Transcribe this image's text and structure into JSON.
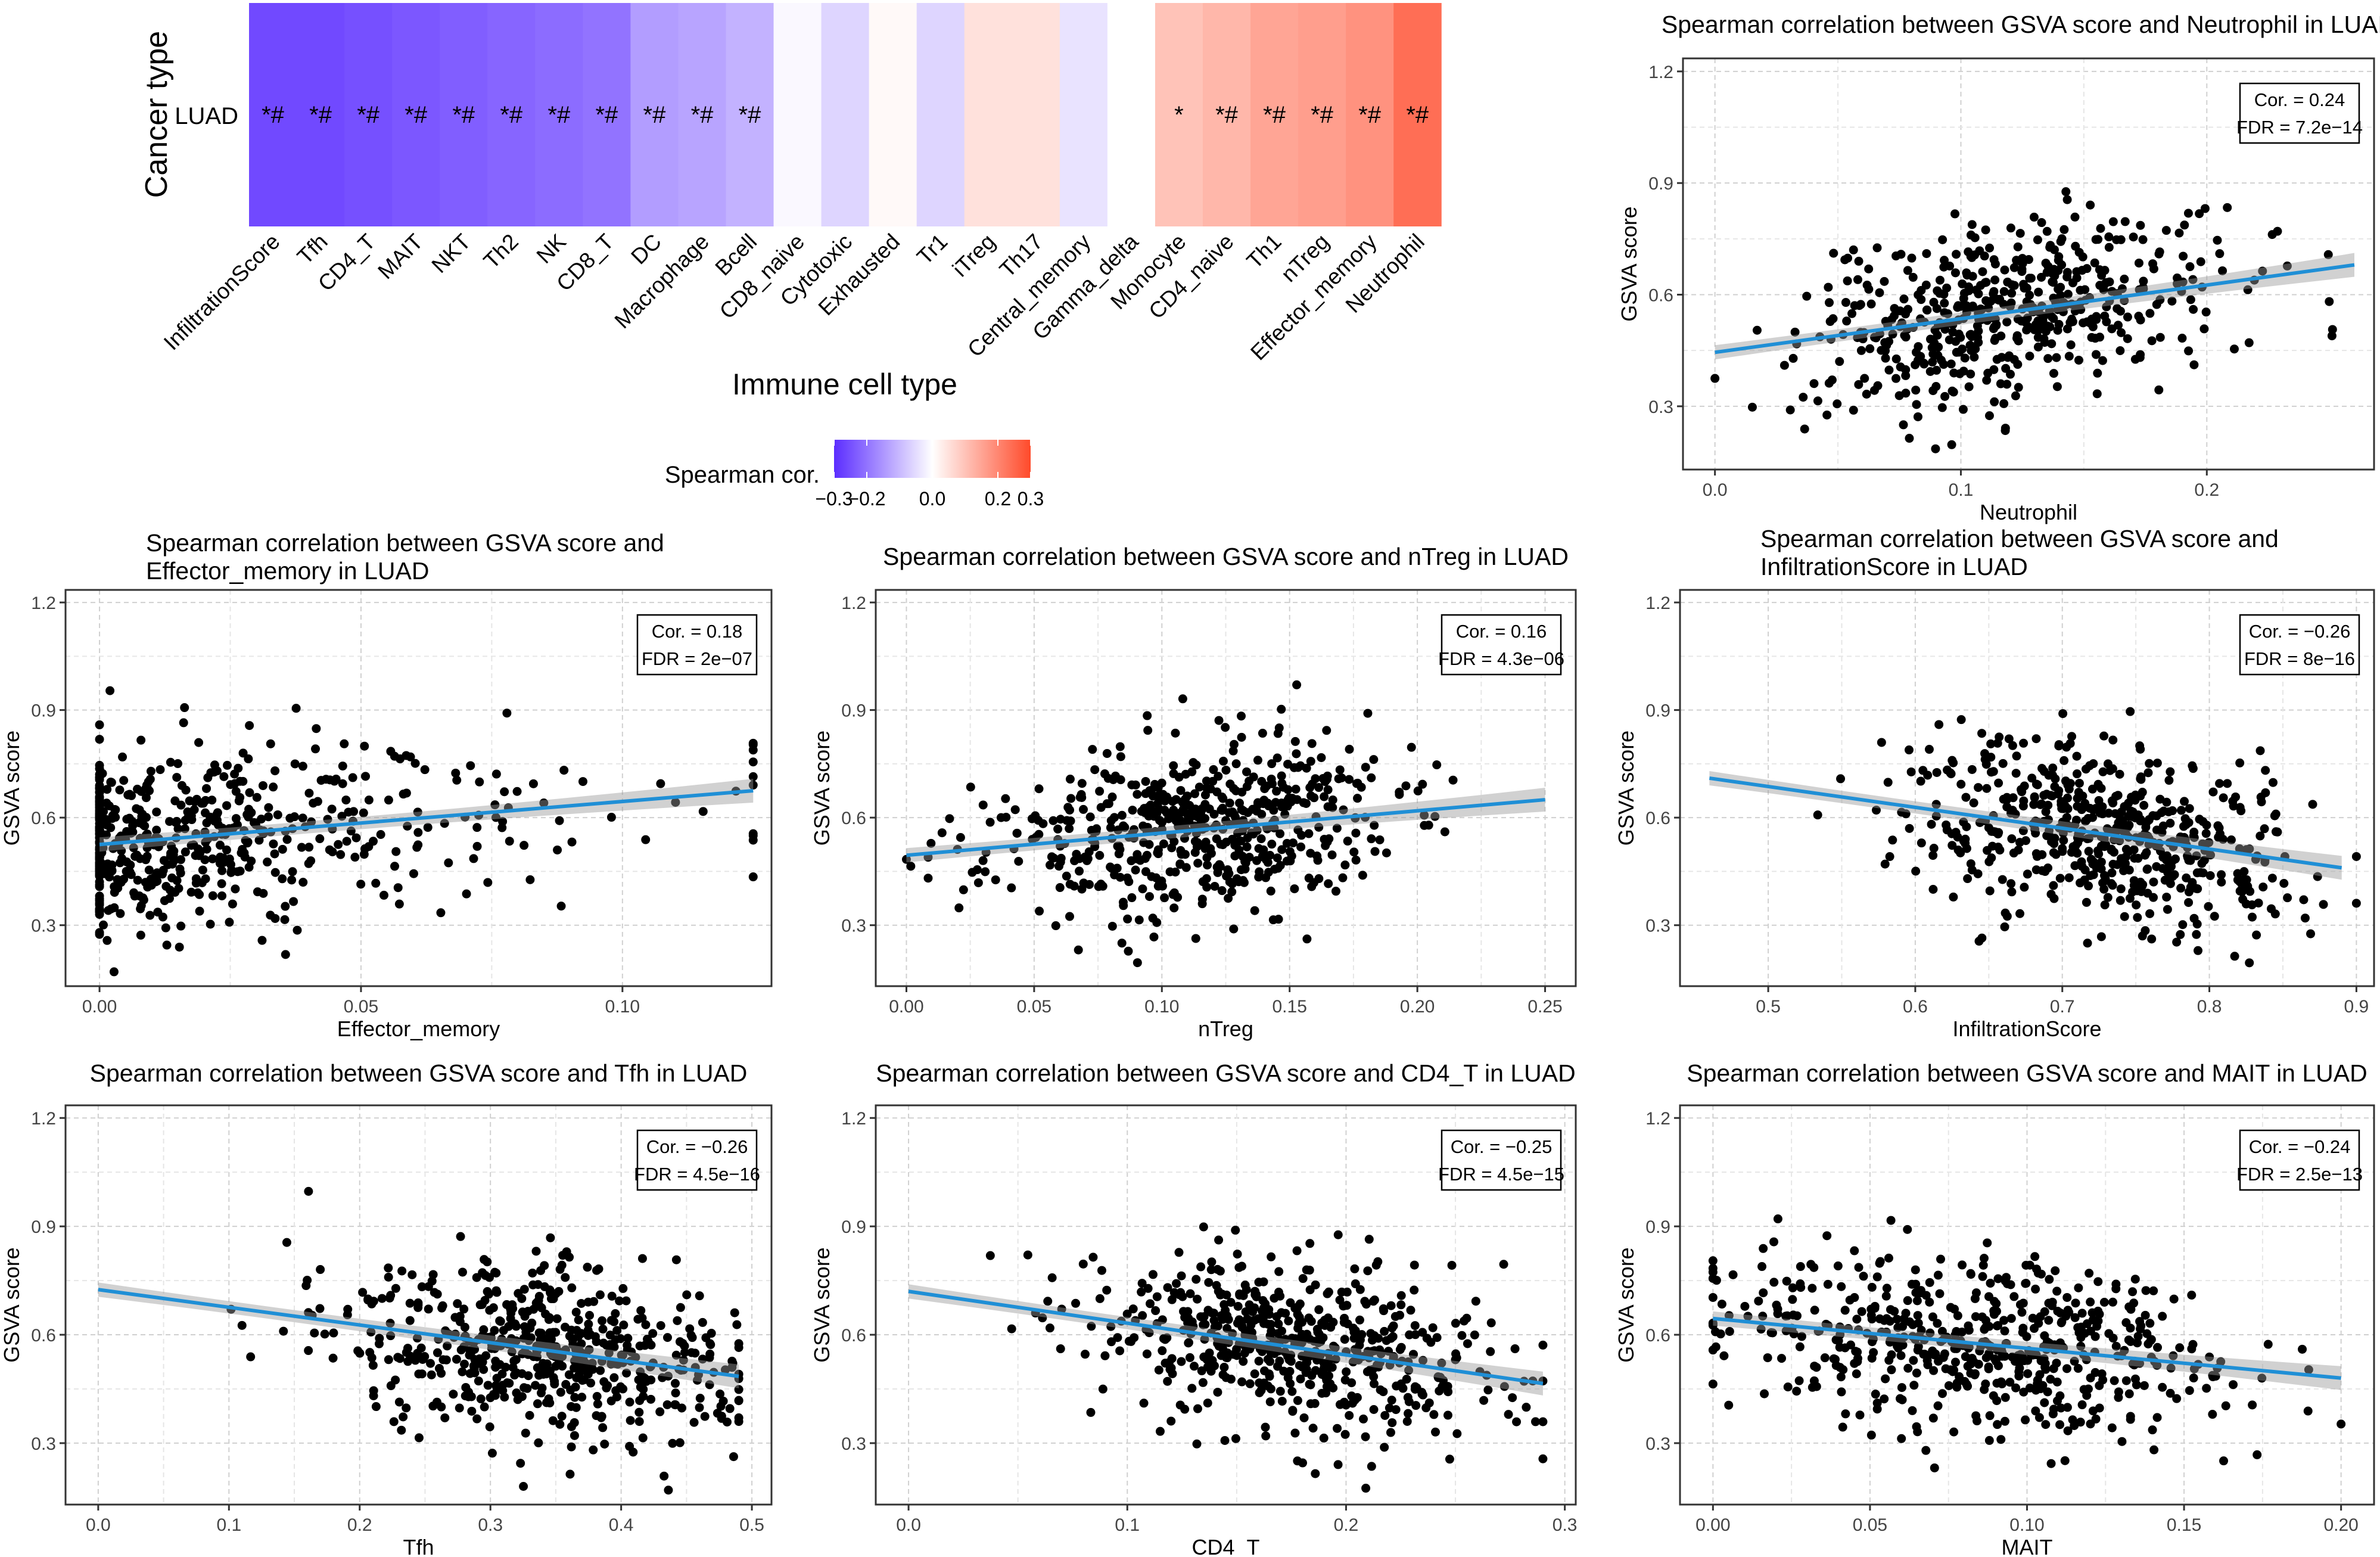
{
  "heatmap": {
    "ylabel": "Cancer type",
    "row_label": "LUAD",
    "xlabel": "Immune cell type",
    "legend_title": "Spearman cor.",
    "legend_ticks": [
      "−0.3",
      "−0.2",
      "0.0",
      "0.2",
      "0.3"
    ],
    "colors": {
      "low": "#5b2dff",
      "mid": "#ffffff",
      "high": "#ff4a2a"
    },
    "cells": [
      {
        "name": "InfiltrationScore",
        "cor": -0.26,
        "sig": "*#"
      },
      {
        "name": "Tfh",
        "cor": -0.26,
        "sig": "*#"
      },
      {
        "name": "CD4_T",
        "cor": -0.25,
        "sig": "*#"
      },
      {
        "name": "MAIT",
        "cor": -0.24,
        "sig": "*#"
      },
      {
        "name": "NKT",
        "cor": -0.23,
        "sig": "*#"
      },
      {
        "name": "Th2",
        "cor": -0.22,
        "sig": "*#"
      },
      {
        "name": "NK",
        "cor": -0.21,
        "sig": "*#"
      },
      {
        "name": "CD8_T",
        "cor": -0.2,
        "sig": "*#"
      },
      {
        "name": "DC",
        "cor": -0.14,
        "sig": "*#"
      },
      {
        "name": "Macrophage",
        "cor": -0.13,
        "sig": "*#"
      },
      {
        "name": "Bcell",
        "cor": -0.11,
        "sig": "*#"
      },
      {
        "name": "CD8_naive",
        "cor": -0.01,
        "sig": ""
      },
      {
        "name": "Cytotoxic",
        "cor": -0.06,
        "sig": ""
      },
      {
        "name": "Exhausted",
        "cor": 0.01,
        "sig": ""
      },
      {
        "name": "Tr1",
        "cor": -0.06,
        "sig": ""
      },
      {
        "name": "iTreg",
        "cor": 0.05,
        "sig": ""
      },
      {
        "name": "Th17",
        "cor": 0.05,
        "sig": ""
      },
      {
        "name": "Central_memory",
        "cor": -0.04,
        "sig": ""
      },
      {
        "name": "Gamma_delta",
        "cor": 0.0,
        "sig": ""
      },
      {
        "name": "Monocyte",
        "cor": 0.1,
        "sig": "*"
      },
      {
        "name": "CD4_naive",
        "cor": 0.12,
        "sig": "*#"
      },
      {
        "name": "Th1",
        "cor": 0.15,
        "sig": "*#"
      },
      {
        "name": "nTreg",
        "cor": 0.16,
        "sig": "*#"
      },
      {
        "name": "Effector_memory",
        "cor": 0.18,
        "sig": "*#"
      },
      {
        "name": "Neutrophil",
        "cor": 0.24,
        "sig": "*#"
      }
    ]
  },
  "chart_data": [
    {
      "type": "scatter",
      "seed": 7,
      "n": 520,
      "title": [
        "Spearman correlation between GSVA score and Neutrophil in LUAD"
      ],
      "xlabel": "Neutrophil",
      "ylabel": "GSVA score",
      "xlim": [
        -0.013,
        0.268
      ],
      "ylim": [
        0.13,
        1.235
      ],
      "xticks": [
        0.0,
        0.1,
        0.2
      ],
      "xtick_labels": [
        "0.0",
        "0.1",
        "0.2"
      ],
      "yticks": [
        0.3,
        0.6,
        0.9,
        1.2
      ],
      "ytick_labels": [
        "0.3",
        "0.6",
        "0.9",
        "1.2"
      ],
      "cor_label": "Cor. = 0.24",
      "fdr_label": "FDR = 7.2e−14",
      "fit": {
        "x0": 0.0,
        "y0": 0.445,
        "x1": 0.26,
        "y1": 0.68
      },
      "x_dist": {
        "mode": "normal",
        "mu": 0.12,
        "sd": 0.042,
        "min": 0.0,
        "max": 0.26,
        "zero_frac": 0
      },
      "noise_sd": 0.12
    },
    {
      "type": "scatter",
      "seed": 11,
      "n": 560,
      "title": [
        "Spearman correlation between GSVA score and",
        "Effector_memory in LUAD"
      ],
      "xlabel": "Effector_memory",
      "ylabel": "GSVA score",
      "xlim": [
        -0.0065,
        0.1285
      ],
      "ylim": [
        0.13,
        1.235
      ],
      "xticks": [
        0.0,
        0.05,
        0.1
      ],
      "xtick_labels": [
        "0.00",
        "0.05",
        "0.10"
      ],
      "yticks": [
        0.3,
        0.6,
        0.9,
        1.2
      ],
      "ytick_labels": [
        "0.3",
        "0.6",
        "0.9",
        "1.2"
      ],
      "cor_label": "Cor. = 0.18",
      "fdr_label": "FDR = 2e−07",
      "fit": {
        "x0": 0.0,
        "y0": 0.525,
        "x1": 0.125,
        "y1": 0.675
      },
      "x_dist": {
        "mode": "exp",
        "mu": 0.028,
        "sd": 0.0,
        "min": 0.0,
        "max": 0.125,
        "zero_frac": 0.2
      },
      "noise_sd": 0.12
    },
    {
      "type": "scatter",
      "seed": 23,
      "n": 560,
      "title": [
        "Spearman correlation between GSVA score and nTreg in LUAD"
      ],
      "xlabel": "nTreg",
      "ylabel": "GSVA score",
      "xlim": [
        -0.012,
        0.262
      ],
      "ylim": [
        0.13,
        1.235
      ],
      "xticks": [
        0.0,
        0.05,
        0.1,
        0.15,
        0.2,
        0.25
      ],
      "xtick_labels": [
        "0.00",
        "0.05",
        "0.10",
        "0.15",
        "0.20",
        "0.25"
      ],
      "yticks": [
        0.3,
        0.6,
        0.9,
        1.2
      ],
      "ytick_labels": [
        "0.3",
        "0.6",
        "0.9",
        "1.2"
      ],
      "cor_label": "Cor. = 0.16",
      "fdr_label": "FDR = 4.3e−06",
      "fit": {
        "x0": 0.0,
        "y0": 0.495,
        "x1": 0.25,
        "y1": 0.65
      },
      "x_dist": {
        "mode": "normal",
        "mu": 0.11,
        "sd": 0.04,
        "min": 0.0,
        "max": 0.25,
        "zero_frac": 0
      },
      "noise_sd": 0.12
    },
    {
      "type": "scatter",
      "seed": 31,
      "n": 560,
      "title": [
        "Spearman correlation between GSVA score and",
        "InfiltrationScore in LUAD"
      ],
      "xlabel": "InfiltrationScore",
      "ylabel": "GSVA score",
      "xlim": [
        0.44,
        0.912
      ],
      "ylim": [
        0.13,
        1.235
      ],
      "xticks": [
        0.5,
        0.6,
        0.7,
        0.8,
        0.9
      ],
      "xtick_labels": [
        "0.5",
        "0.6",
        "0.7",
        "0.8",
        "0.9"
      ],
      "yticks": [
        0.3,
        0.6,
        0.9,
        1.2
      ],
      "ytick_labels": [
        "0.3",
        "0.6",
        "0.9",
        "1.2"
      ],
      "cor_label": "Cor. = −0.26",
      "fdr_label": "FDR = 8e−16",
      "fit": {
        "x0": 0.46,
        "y0": 0.71,
        "x1": 0.89,
        "y1": 0.46
      },
      "x_dist": {
        "mode": "normal",
        "mu": 0.73,
        "sd": 0.065,
        "min": 0.46,
        "max": 0.9,
        "zero_frac": 0
      },
      "noise_sd": 0.12
    },
    {
      "type": "scatter",
      "seed": 43,
      "n": 560,
      "title": [
        "Spearman correlation between GSVA score and Tfh in LUAD"
      ],
      "xlabel": "Tfh",
      "ylabel": "GSVA score",
      "xlim": [
        -0.025,
        0.515
      ],
      "ylim": [
        0.13,
        1.235
      ],
      "xticks": [
        0.0,
        0.1,
        0.2,
        0.3,
        0.4,
        0.5
      ],
      "xtick_labels": [
        "0.0",
        "0.1",
        "0.2",
        "0.3",
        "0.4",
        "0.5"
      ],
      "yticks": [
        0.3,
        0.6,
        0.9,
        1.2
      ],
      "ytick_labels": [
        "0.3",
        "0.6",
        "0.9",
        "1.2"
      ],
      "cor_label": "Cor. = −0.26",
      "fdr_label": "FDR = 4.5e−16",
      "fit": {
        "x0": 0.0,
        "y0": 0.725,
        "x1": 0.49,
        "y1": 0.485
      },
      "x_dist": {
        "mode": "normal",
        "mu": 0.34,
        "sd": 0.08,
        "min": 0.0,
        "max": 0.49,
        "zero_frac": 0
      },
      "noise_sd": 0.12
    },
    {
      "type": "scatter",
      "seed": 53,
      "n": 560,
      "title": [
        "Spearman correlation between GSVA score and CD4_T in LUAD"
      ],
      "xlabel": "CD4_T",
      "ylabel": "GSVA score",
      "xlim": [
        -0.015,
        0.305
      ],
      "ylim": [
        0.13,
        1.235
      ],
      "xticks": [
        0.0,
        0.1,
        0.2,
        0.3
      ],
      "xtick_labels": [
        "0.0",
        "0.1",
        "0.2",
        "0.3"
      ],
      "yticks": [
        0.3,
        0.6,
        0.9,
        1.2
      ],
      "ytick_labels": [
        "0.3",
        "0.6",
        "0.9",
        "1.2"
      ],
      "cor_label": "Cor. = −0.25",
      "fdr_label": "FDR = 4.5e−15",
      "fit": {
        "x0": 0.0,
        "y0": 0.72,
        "x1": 0.29,
        "y1": 0.465
      },
      "x_dist": {
        "mode": "normal",
        "mu": 0.18,
        "sd": 0.05,
        "min": 0.0,
        "max": 0.29,
        "zero_frac": 0
      },
      "noise_sd": 0.12
    },
    {
      "type": "scatter",
      "seed": 61,
      "n": 560,
      "title": [
        "Spearman correlation between GSVA score and MAIT in LUAD"
      ],
      "xlabel": "MAIT",
      "ylabel": "GSVA score",
      "xlim": [
        -0.0105,
        0.2105
      ],
      "ylim": [
        0.13,
        1.235
      ],
      "xticks": [
        0.0,
        0.05,
        0.1,
        0.15,
        0.2
      ],
      "xtick_labels": [
        "0.00",
        "0.05",
        "0.10",
        "0.15",
        "0.20"
      ],
      "yticks": [
        0.3,
        0.6,
        0.9,
        1.2
      ],
      "ytick_labels": [
        "0.3",
        "0.6",
        "0.9",
        "1.2"
      ],
      "cor_label": "Cor. = −0.24",
      "fdr_label": "FDR = 2.5e−13",
      "fit": {
        "x0": 0.0,
        "y0": 0.645,
        "x1": 0.2,
        "y1": 0.48
      },
      "x_dist": {
        "mode": "normal",
        "mu": 0.085,
        "sd": 0.04,
        "min": 0.0,
        "max": 0.2,
        "zero_frac": 0
      },
      "noise_sd": 0.12
    }
  ]
}
